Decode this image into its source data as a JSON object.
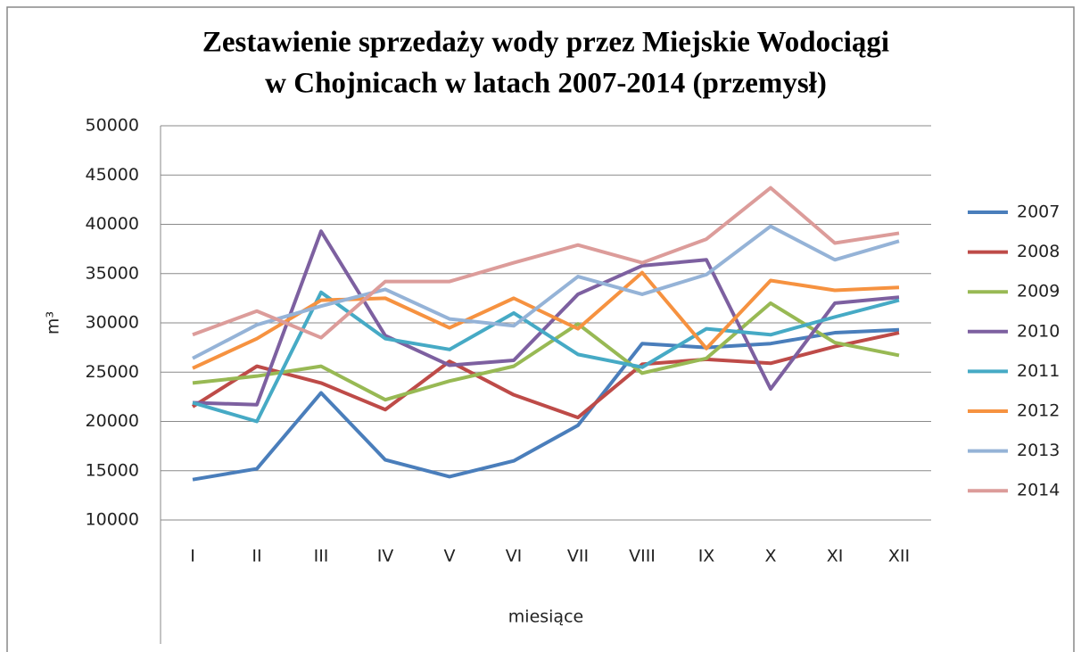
{
  "chart_data": {
    "type": "line",
    "title": "Zestawienie sprzedaży wody przez Miejskie Wodociągi",
    "subtitle": "w Chojnicach w latach 2007-2014 (przemysł)",
    "x_label": "miesiące",
    "y_label": "m³",
    "categories": [
      "I",
      "II",
      "III",
      "IV",
      "V",
      "VI",
      "VII",
      "VIII",
      "IX",
      "X",
      "XI",
      "XII"
    ],
    "ylim": [
      10000,
      50000
    ],
    "yticks": [
      10000,
      15000,
      20000,
      25000,
      30000,
      35000,
      40000,
      45000,
      50000
    ],
    "grid": true,
    "legend": "right",
    "series": [
      {
        "name": "2007",
        "color": "#4a7ebb",
        "values": [
          14100,
          15200,
          22900,
          16100,
          14400,
          16000,
          19600,
          27900,
          27500,
          27900,
          29000,
          29300
        ]
      },
      {
        "name": "2008",
        "color": "#be4b48",
        "values": [
          21500,
          25600,
          23900,
          21200,
          26100,
          22700,
          20400,
          25800,
          26300,
          25900,
          27600,
          29000
        ]
      },
      {
        "name": "2009",
        "color": "#98b954",
        "values": [
          23900,
          24600,
          25600,
          22200,
          24100,
          25600,
          29900,
          24900,
          26400,
          32000,
          28000,
          26700
        ]
      },
      {
        "name": "2010",
        "color": "#7d60a0",
        "values": [
          21900,
          21700,
          39300,
          28700,
          25700,
          26200,
          32900,
          35800,
          36400,
          23300,
          32000,
          32600
        ]
      },
      {
        "name": "2011",
        "color": "#46aac5",
        "values": [
          21900,
          20000,
          33100,
          28400,
          27300,
          31000,
          26800,
          25500,
          29400,
          28800,
          30600,
          32300
        ]
      },
      {
        "name": "2012",
        "color": "#f69240",
        "values": [
          25400,
          28400,
          32300,
          32500,
          29500,
          32500,
          29400,
          35100,
          27400,
          34300,
          33300,
          33600
        ]
      },
      {
        "name": "2013",
        "color": "#95b3d7",
        "values": [
          26400,
          29800,
          31700,
          33400,
          30400,
          29700,
          34700,
          32900,
          34900,
          39800,
          36400,
          38300
        ]
      },
      {
        "name": "2014",
        "color": "#dc9c9a",
        "values": [
          28800,
          31200,
          28500,
          34200,
          34200,
          36100,
          37900,
          36100,
          38500,
          43700,
          38100,
          39100
        ]
      }
    ]
  }
}
